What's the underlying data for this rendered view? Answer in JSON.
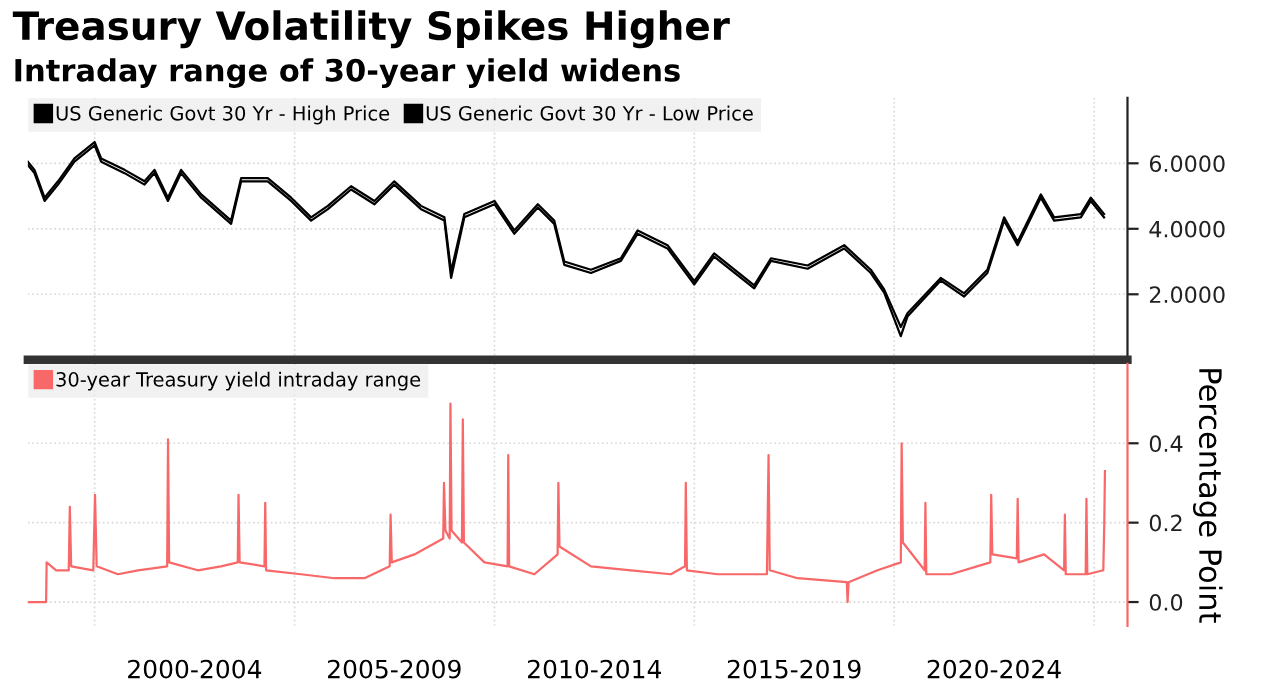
{
  "chart_data": [
    {
      "type": "line",
      "title": "Treasury Volatility Spikes Higher",
      "subtitle": "Intraday range of 30-year yield widens",
      "xlim": [
        "1998-05",
        "2025-11"
      ],
      "xticks": [
        {
          "value": "2000-01-01",
          "label": null
        },
        {
          "value": "2005-01-01",
          "label": null
        },
        {
          "value": "2010-01-01",
          "label": null
        },
        {
          "value": "2015-01-01",
          "label": null
        },
        {
          "value": "2020-01-01",
          "label": null
        },
        {
          "value": "2025-01-01",
          "label": null
        }
      ],
      "ylim": [
        0,
        8
      ],
      "yticks": [
        {
          "value": 2,
          "label": "2.0000"
        },
        {
          "value": 4,
          "label": "4.0000"
        },
        {
          "value": 6,
          "label": "6.0000"
        }
      ],
      "tick_labels": "y",
      "grid": true,
      "legend": "top left",
      "x": [
        "1998-05",
        "1998-07",
        "1998-10",
        "1999-02",
        "1999-07",
        "2000-01",
        "2000-03",
        "2000-10",
        "2001-04",
        "2001-07",
        "2001-11",
        "2002-03",
        "2002-09",
        "2003-06",
        "2003-09",
        "2004-05",
        "2004-12",
        "2005-06",
        "2005-11",
        "2006-06",
        "2007-01",
        "2007-07",
        "2008-03",
        "2008-10",
        "2008-12",
        "2009-04",
        "2010-01",
        "2010-07",
        "2011-02",
        "2011-07",
        "2011-10",
        "2012-06",
        "2013-03",
        "2013-08",
        "2014-05",
        "2015-01",
        "2015-07",
        "2016-07",
        "2016-12",
        "2017-11",
        "2018-10",
        "2019-06",
        "2019-10",
        "2020-03",
        "2020-05",
        "2021-03",
        "2021-10",
        "2022-05",
        "2022-10",
        "2023-02",
        "2023-09",
        "2024-01",
        "2024-09",
        "2024-12",
        "2025-04"
      ],
      "series": [
        {
          "name": "US Generic Govt 30 Yr - High Price",
          "color": "#000000",
          "values": [
            6.05,
            5.8,
            4.95,
            5.45,
            6.15,
            6.65,
            6.15,
            5.8,
            5.45,
            5.8,
            4.95,
            5.8,
            5.05,
            4.25,
            5.55,
            5.55,
            4.95,
            4.35,
            4.7,
            5.3,
            4.85,
            5.45,
            4.7,
            4.35,
            2.7,
            4.45,
            4.85,
            3.95,
            4.75,
            4.25,
            3.0,
            2.75,
            3.1,
            3.95,
            3.5,
            2.4,
            3.25,
            2.27,
            3.1,
            2.88,
            3.5,
            2.75,
            2.15,
            1.0,
            1.42,
            2.5,
            2.03,
            2.75,
            4.35,
            3.6,
            5.05,
            4.35,
            4.45,
            4.95,
            4.45
          ]
        },
        {
          "name": "US Generic Govt 30 Yr - Low Price",
          "color": "#000000",
          "values": [
            5.95,
            5.7,
            4.85,
            5.35,
            6.05,
            6.55,
            6.05,
            5.7,
            5.35,
            5.7,
            4.85,
            5.7,
            4.95,
            4.15,
            5.45,
            5.45,
            4.85,
            4.25,
            4.6,
            5.2,
            4.75,
            5.35,
            4.6,
            4.25,
            2.5,
            4.35,
            4.75,
            3.85,
            4.65,
            4.15,
            2.9,
            2.65,
            3.02,
            3.85,
            3.4,
            2.3,
            3.15,
            2.18,
            3.02,
            2.78,
            3.4,
            2.65,
            2.05,
            0.72,
            1.32,
            2.42,
            1.93,
            2.65,
            4.25,
            3.5,
            4.95,
            4.25,
            4.35,
            4.85,
            4.35
          ]
        }
      ]
    },
    {
      "type": "line",
      "ylabel": "Percentage Point",
      "xlim": [
        "1998-05",
        "2025-11"
      ],
      "xticks": [
        {
          "value": "2000-01-01",
          "label": null
        },
        {
          "value": "2002-07-01",
          "label": "2000-2004"
        },
        {
          "value": "2005-01-01",
          "label": null
        },
        {
          "value": "2007-07-01",
          "label": "2005-2009"
        },
        {
          "value": "2010-01-01",
          "label": null
        },
        {
          "value": "2012-07-01",
          "label": "2010-2014"
        },
        {
          "value": "2015-01-01",
          "label": null
        },
        {
          "value": "2017-07-01",
          "label": "2015-2019"
        },
        {
          "value": "2020-01-01",
          "label": null
        },
        {
          "value": "2022-07-01",
          "label": "2020-2024"
        },
        {
          "value": "2025-01-01",
          "label": null
        }
      ],
      "ylim": [
        -0.06,
        0.6
      ],
      "yticks": [
        {
          "value": 0,
          "label": "0.0"
        },
        0.2,
        0.4
      ],
      "grid": true,
      "legend": "top left",
      "x": [
        "1998-05-01",
        "1998-10-15",
        "1998-10-20",
        "1999-01-15",
        "1999-05-10",
        "1999-05-20",
        "1999-06-01",
        "1999-12-20",
        "2000-01-05",
        "2000-01-20",
        "2000-08-01",
        "2001-02-01",
        "2001-10-25",
        "2001-11-02",
        "2001-11-12",
        "2002-08-01",
        "2003-03-01",
        "2003-08-01",
        "2003-08-08",
        "2003-08-18",
        "2004-04-01",
        "2004-04-08",
        "2004-04-16",
        "2005-03-01",
        "2006-01-01",
        "2006-10-01",
        "2007-05-20",
        "2007-05-28",
        "2007-06-08",
        "2008-01-01",
        "2008-09-20",
        "2008-09-27",
        "2008-10-10",
        "2008-11-18",
        "2008-11-25",
        "2008-12-05",
        "2009-03-10",
        "2009-03-18",
        "2009-03-28",
        "2009-10-01",
        "2010-05-01",
        "2010-05-07",
        "2010-05-15",
        "2011-01-01",
        "2011-08-01",
        "2011-08-08",
        "2011-08-18",
        "2012-06-01",
        "2013-06-01",
        "2014-06-01",
        "2014-10-08",
        "2014-10-15",
        "2014-10-25",
        "2015-08-01",
        "2016-10-25",
        "2016-11-09",
        "2016-11-20",
        "2017-08-01",
        "2018-10-25",
        "2018-11-01",
        "2018-11-10",
        "2019-08-01",
        "2020-03-01",
        "2020-03-09",
        "2020-03-20",
        "2020-10-05",
        "2020-10-12",
        "2020-10-20",
        "2021-06-01",
        "2022-05-28",
        "2022-06-05",
        "2022-06-15",
        "2023-01-25",
        "2023-02-02",
        "2023-02-10",
        "2023-10-01",
        "2024-04-01",
        "2024-04-08",
        "2024-04-16",
        "2024-10-15",
        "2024-10-22",
        "2024-10-30",
        "2025-03-25",
        "2025-04-03",
        "2025-04-09"
      ],
      "series": [
        {
          "name": "30-year Treasury yield intraday range",
          "color": "#f86868",
          "values": [
            0.0,
            0.0,
            0.1,
            0.08,
            0.08,
            0.24,
            0.09,
            0.08,
            0.27,
            0.09,
            0.07,
            0.08,
            0.09,
            0.41,
            0.1,
            0.08,
            0.09,
            0.1,
            0.27,
            0.1,
            0.09,
            0.25,
            0.08,
            0.07,
            0.06,
            0.06,
            0.09,
            0.22,
            0.1,
            0.12,
            0.16,
            0.3,
            0.18,
            0.16,
            0.5,
            0.18,
            0.15,
            0.46,
            0.15,
            0.1,
            0.09,
            0.37,
            0.09,
            0.07,
            0.12,
            0.3,
            0.14,
            0.09,
            0.08,
            0.07,
            0.09,
            0.3,
            0.08,
            0.07,
            0.07,
            0.37,
            0.08,
            0.06,
            0.05,
            0.0,
            0.05,
            0.08,
            0.1,
            0.4,
            0.15,
            0.08,
            0.25,
            0.07,
            0.07,
            0.1,
            0.27,
            0.12,
            0.11,
            0.26,
            0.1,
            0.12,
            0.08,
            0.22,
            0.07,
            0.07,
            0.26,
            0.07,
            0.08,
            0.2,
            0.33
          ]
        }
      ]
    }
  ]
}
